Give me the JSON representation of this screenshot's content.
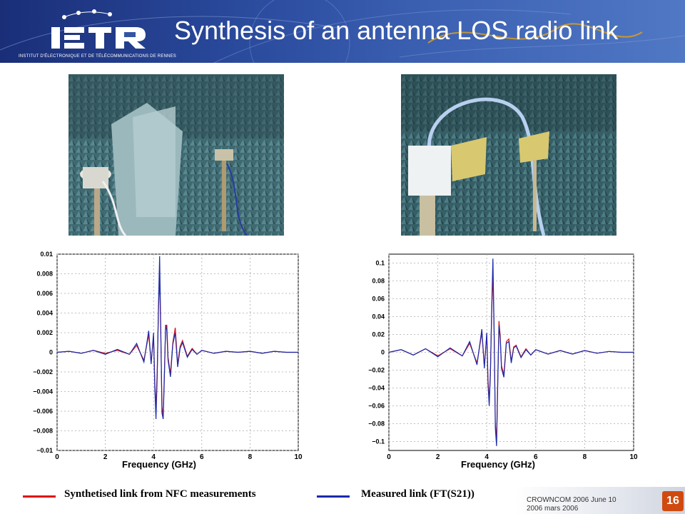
{
  "header": {
    "title": "Synthesis of an antenna LOS radio link",
    "institute": "INSTITUT D'ÉLECTRONIQUE ET DE TÉLÉCOMMUNICATIONS DE RENNES",
    "logo_text": "IETR",
    "colors": {
      "band": "#2a4a9c",
      "title": "#ffffff"
    }
  },
  "photos": [
    {
      "alt": ""
    },
    {
      "alt": ""
    }
  ],
  "legend": {
    "synth_label": "Synthetised link from NFC measurements",
    "measured_label": "Measured link  (FT(S21))",
    "synth_color": "#dd1111",
    "measured_color": "#1a2aaa"
  },
  "footer": {
    "line1": "CROWNCOM 2006 June 10",
    "line2": "2006 mars 2006",
    "page_number": "16"
  },
  "chart_data": [
    {
      "type": "line",
      "xlabel": "Frequency (GHz)",
      "ylabel": "",
      "xlim": [
        0,
        10
      ],
      "ylim": [
        -0.01,
        0.01
      ],
      "xticks": [
        "0",
        "2",
        "4",
        "6",
        "8",
        "10"
      ],
      "yticks": [
        "0.01",
        "0.008",
        "0.006",
        "0.004",
        "0.002",
        "0",
        "−0.002",
        "−0.004",
        "−0.006",
        "−0.008",
        "−0.01"
      ],
      "grid": true,
      "series": [
        {
          "color": "#dd1111",
          "x": [
            0,
            0.5,
            1,
            1.5,
            2,
            2.5,
            3,
            3.3,
            3.6,
            3.8,
            3.9,
            4,
            4.05,
            4.1,
            4.15,
            4.2,
            4.25,
            4.3,
            4.35,
            4.4,
            4.45,
            4.5,
            4.55,
            4.6,
            4.7,
            4.8,
            4.9,
            5,
            5.1,
            5.2,
            5.4,
            5.6,
            5.8,
            6,
            6.5,
            7,
            7.5,
            8,
            8.5,
            9,
            9.5,
            10
          ],
          "y": [
            0,
            0.0001,
            -0.0001,
            0.0002,
            -0.0001,
            0.0002,
            -0.0002,
            0.0007,
            -0.0008,
            0.0018,
            -0.001,
            0.0015,
            -0.003,
            -0.0055,
            -0.002,
            0.004,
            0.0078,
            0.002,
            -0.0055,
            -0.0065,
            -0.002,
            0.0025,
            0.0028,
            -0.0005,
            -0.0022,
            0.001,
            0.0025,
            -0.0012,
            0.0006,
            0.0012,
            -0.0004,
            0.0004,
            -0.0002,
            0.0002,
            -0.0001,
            0.0001,
            0,
            0.0001,
            -0.0001,
            0.0001,
            0,
            0
          ]
        },
        {
          "color": "#1a2aaa",
          "x": [
            0,
            0.5,
            1,
            1.5,
            2,
            2.5,
            3,
            3.3,
            3.6,
            3.8,
            3.9,
            4,
            4.05,
            4.1,
            4.15,
            4.2,
            4.25,
            4.3,
            4.35,
            4.4,
            4.45,
            4.5,
            4.55,
            4.6,
            4.7,
            4.8,
            4.9,
            5,
            5.1,
            5.2,
            5.4,
            5.6,
            5.8,
            6,
            6.5,
            7,
            7.5,
            8,
            8.5,
            9,
            9.5,
            10
          ],
          "y": [
            0,
            0.0001,
            -0.0001,
            0.0002,
            -0.0002,
            0.0003,
            -0.0002,
            0.0009,
            -0.001,
            0.0022,
            -0.0012,
            0.002,
            -0.0035,
            -0.0068,
            -0.0025,
            0.0045,
            0.0098,
            0.0025,
            -0.0062,
            -0.0068,
            -0.0025,
            0.0028,
            0.0022,
            -0.0008,
            -0.0025,
            0.0008,
            0.002,
            -0.0015,
            0.0004,
            0.001,
            -0.0005,
            0.0003,
            -0.0002,
            0.0002,
            -0.0001,
            0.0001,
            0,
            0.0001,
            -0.0001,
            0.0001,
            0,
            0
          ]
        }
      ]
    },
    {
      "type": "line",
      "xlabel": "Frequency (GHz)",
      "ylabel": "",
      "xlim": [
        0,
        10
      ],
      "ylim": [
        -0.11,
        0.11
      ],
      "xticks": [
        "0",
        "2",
        "4",
        "6",
        "8",
        "10"
      ],
      "yticks": [
        "0.1",
        "0.08",
        "0.06",
        "0.04",
        "0.02",
        "0",
        "−0.02",
        "−0.04",
        "−0.06",
        "−0.08",
        "−0.1"
      ],
      "grid": true,
      "series": [
        {
          "color": "#dd1111",
          "x": [
            0,
            0.5,
            1,
            1.5,
            2,
            2.5,
            3,
            3.3,
            3.6,
            3.8,
            3.9,
            4,
            4.05,
            4.1,
            4.15,
            4.2,
            4.25,
            4.3,
            4.35,
            4.4,
            4.45,
            4.5,
            4.55,
            4.6,
            4.7,
            4.8,
            4.9,
            5,
            5.1,
            5.2,
            5.4,
            5.6,
            5.8,
            6,
            6.5,
            7,
            7.5,
            8,
            8.5,
            9,
            9.5,
            10
          ],
          "y": [
            0,
            0.003,
            -0.003,
            0.004,
            -0.004,
            0.004,
            -0.004,
            0.01,
            -0.012,
            0.022,
            -0.015,
            0.02,
            -0.03,
            -0.055,
            -0.02,
            0.045,
            0.09,
            0.02,
            -0.08,
            -0.1,
            -0.03,
            0.035,
            0.018,
            -0.015,
            -0.025,
            0.012,
            0.015,
            -0.01,
            0.006,
            0.008,
            -0.005,
            0.004,
            -0.003,
            0.003,
            -0.002,
            0.002,
            -0.002,
            0.002,
            -0.001,
            0.001,
            0,
            0
          ]
        },
        {
          "color": "#1a2aaa",
          "x": [
            0,
            0.5,
            1,
            1.5,
            2,
            2.5,
            3,
            3.3,
            3.6,
            3.8,
            3.9,
            4,
            4.05,
            4.1,
            4.15,
            4.2,
            4.25,
            4.3,
            4.35,
            4.4,
            4.45,
            4.5,
            4.55,
            4.6,
            4.7,
            4.8,
            4.9,
            5,
            5.1,
            5.2,
            5.4,
            5.6,
            5.8,
            6,
            6.5,
            7,
            7.5,
            8,
            8.5,
            9,
            9.5,
            10
          ],
          "y": [
            0,
            0.003,
            -0.003,
            0.004,
            -0.005,
            0.005,
            -0.004,
            0.012,
            -0.014,
            0.026,
            -0.018,
            0.022,
            -0.035,
            -0.06,
            -0.025,
            0.05,
            0.105,
            0.025,
            -0.085,
            -0.105,
            -0.035,
            0.03,
            0.015,
            -0.018,
            -0.028,
            0.01,
            0.012,
            -0.012,
            0.005,
            0.007,
            -0.006,
            0.003,
            -0.003,
            0.003,
            -0.002,
            0.002,
            -0.002,
            0.002,
            -0.001,
            0.001,
            0,
            0
          ]
        }
      ]
    }
  ]
}
